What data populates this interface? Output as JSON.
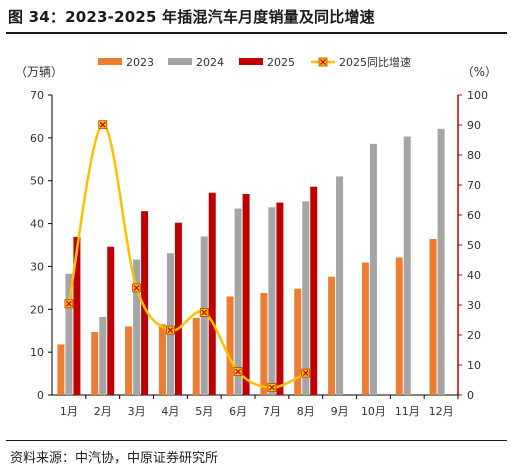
{
  "figure_title": "图 34：2023-2025 年插混汽车月度销量及同比增速",
  "source_text": "资料来源：中汽协，中原证券研究所",
  "chart_data": {
    "type": "bar",
    "categories": [
      "1月",
      "2月",
      "3月",
      "4月",
      "5月",
      "6月",
      "7月",
      "8月",
      "9月",
      "10月",
      "11月",
      "12月"
    ],
    "left_axis": {
      "label": "（万辆）",
      "ylim": [
        0,
        70
      ],
      "ticks": [
        "0",
        "10",
        "20",
        "30",
        "40",
        "50",
        "60",
        "70"
      ]
    },
    "right_axis": {
      "label": "（%）",
      "ylim": [
        0,
        100
      ],
      "ticks": [
        "0",
        "10",
        "20",
        "30",
        "40",
        "50",
        "60",
        "70",
        "80",
        "90",
        "100"
      ]
    },
    "series": [
      {
        "name": "2023",
        "kind": "bar",
        "axis": "left",
        "color": "#ED7D31",
        "values": [
          11.8,
          14.7,
          16.0,
          16.5,
          18.0,
          23.0,
          23.8,
          24.8,
          27.6,
          30.9,
          32.1,
          36.4
        ]
      },
      {
        "name": "2024",
        "kind": "bar",
        "axis": "left",
        "color": "#A5A5A5",
        "values": [
          28.3,
          18.2,
          31.6,
          33.1,
          37.0,
          43.5,
          43.8,
          45.2,
          51.0,
          58.6,
          60.3,
          62.1
        ]
      },
      {
        "name": "2025",
        "kind": "bar",
        "axis": "left",
        "color": "#C00000",
        "values": [
          36.9,
          34.6,
          42.9,
          40.2,
          47.2,
          46.9,
          44.9,
          48.6,
          null,
          null,
          null,
          null
        ]
      },
      {
        "name": "2025同比增速",
        "kind": "line",
        "axis": "right",
        "color": "#FFC000",
        "values": [
          30.4,
          90.1,
          35.7,
          21.6,
          27.5,
          7.8,
          2.5,
          7.3,
          null,
          null,
          null,
          null
        ]
      }
    ],
    "legend_position": "top",
    "grid": false
  }
}
